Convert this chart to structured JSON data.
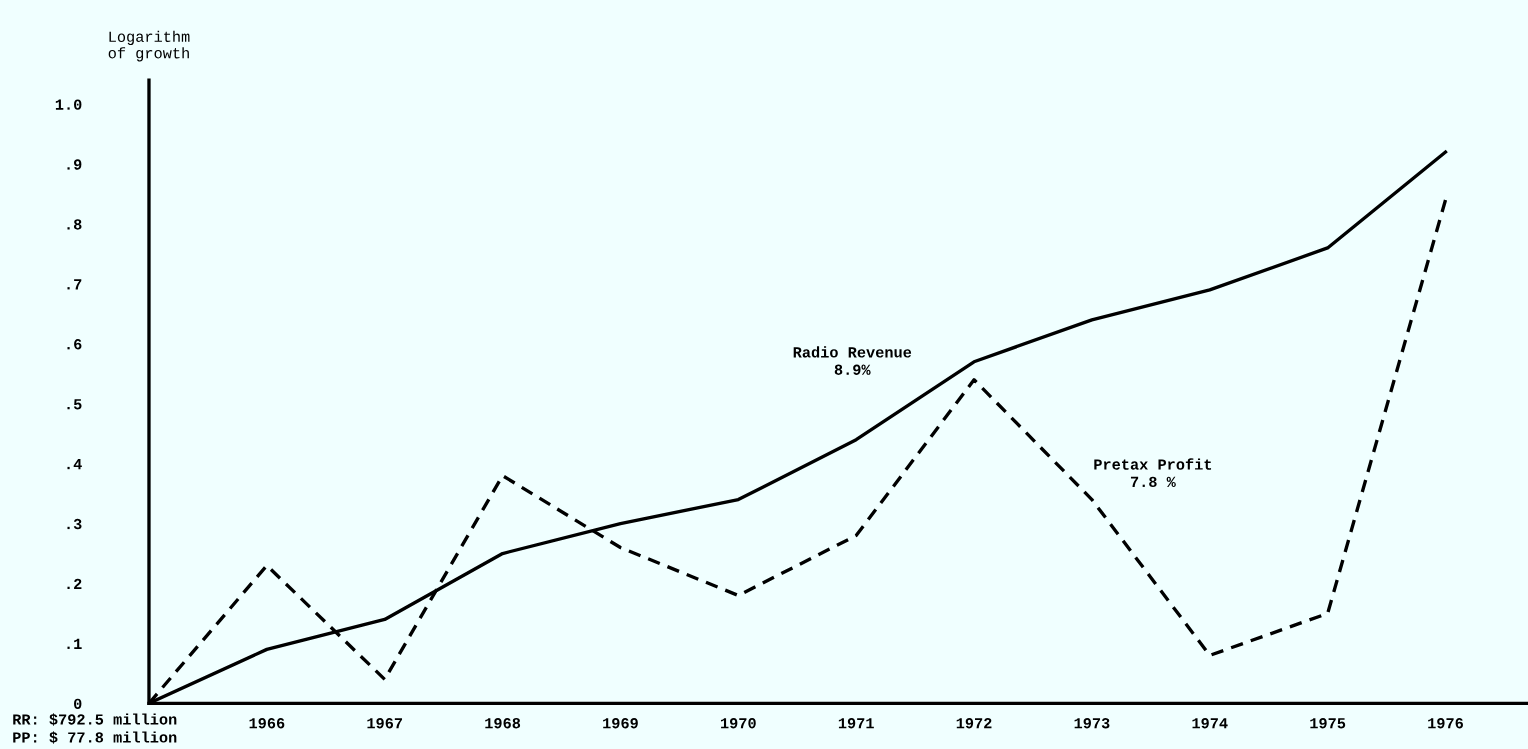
{
  "chart_data": {
    "type": "line",
    "ylabel": "Logarithm\nof growth",
    "x": [
      1965,
      1966,
      1967,
      1968,
      1969,
      1970,
      1971,
      1972,
      1973,
      1974,
      1975,
      1976
    ],
    "series": [
      {
        "name": "Radio Revenue",
        "color": "#000000",
        "line_style": "solid",
        "values": [
          0,
          0.09,
          0.14,
          0.25,
          0.3,
          0.34,
          0.44,
          0.57,
          0.64,
          0.69,
          0.76,
          0.92
        ]
      },
      {
        "name": "Pretax Profit",
        "color": "#000000",
        "line_style": "dashed",
        "values": [
          0,
          0.23,
          0.04,
          0.38,
          0.26,
          0.18,
          0.28,
          0.54,
          0.34,
          0.08,
          0.15,
          0.84
        ]
      }
    ],
    "annotations": [
      "8.9%",
      "7.8 %",
      "RR: $792.5 million",
      "PP: $ 77.8 million"
    ],
    "xlim": [
      1965,
      1976.7
    ],
    "ylim": [
      0,
      1.04
    ],
    "xticks": [
      1966,
      1967,
      1968,
      1969,
      1970,
      1971,
      1972,
      1973,
      1974,
      1975,
      1976
    ],
    "yticks": [
      0,
      {
        "value": 0.1,
        "label": ".1"
      },
      {
        "value": 0.2,
        "label": ".2"
      },
      {
        "value": 0.3,
        "label": ".3"
      },
      {
        "value": 0.4,
        "label": ".4"
      },
      {
        "value": 0.5,
        "label": ".5"
      },
      {
        "value": 0.6,
        "label": ".6"
      },
      {
        "value": 0.7,
        "label": ".7"
      },
      {
        "value": 0.8,
        "label": ".8"
      },
      {
        "value": 0.9,
        "label": ".9"
      },
      {
        "value": 1.0,
        "label": "1.0"
      }
    ],
    "grid": false,
    "legend": false,
    "marker": "none"
  }
}
